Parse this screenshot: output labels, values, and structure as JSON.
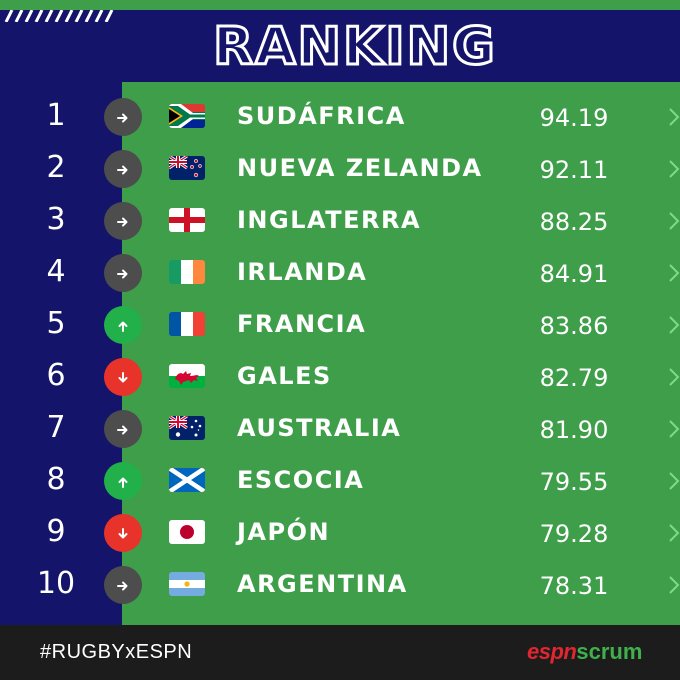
{
  "title": "RANKING",
  "rows": [
    {
      "rank": "1",
      "team": "SUDÁFRICA",
      "points": "94.19",
      "trend": "same",
      "trend_icon": "arrow-right-icon",
      "flag": "flag-south-africa-icon"
    },
    {
      "rank": "2",
      "team": "NUEVA ZELANDA",
      "points": "92.11",
      "trend": "same",
      "trend_icon": "arrow-right-icon",
      "flag": "flag-new-zealand-icon"
    },
    {
      "rank": "3",
      "team": "INGLATERRA",
      "points": "88.25",
      "trend": "same",
      "trend_icon": "arrow-right-icon",
      "flag": "flag-england-icon"
    },
    {
      "rank": "4",
      "team": "IRLANDA",
      "points": "84.91",
      "trend": "same",
      "trend_icon": "arrow-right-icon",
      "flag": "flag-ireland-icon"
    },
    {
      "rank": "5",
      "team": "FRANCIA",
      "points": "83.86",
      "trend": "up",
      "trend_icon": "arrow-up-icon",
      "flag": "flag-france-icon"
    },
    {
      "rank": "6",
      "team": "GALES",
      "points": "82.79",
      "trend": "down",
      "trend_icon": "arrow-down-icon",
      "flag": "flag-wales-icon"
    },
    {
      "rank": "7",
      "team": "AUSTRALIA",
      "points": "81.90",
      "trend": "same",
      "trend_icon": "arrow-right-icon",
      "flag": "flag-australia-icon"
    },
    {
      "rank": "8",
      "team": "ESCOCIA",
      "points": "79.55",
      "trend": "up",
      "trend_icon": "arrow-up-icon",
      "flag": "flag-scotland-icon"
    },
    {
      "rank": "9",
      "team": "JAPÓN",
      "points": "79.28",
      "trend": "down",
      "trend_icon": "arrow-down-icon",
      "flag": "flag-japan-icon"
    },
    {
      "rank": "10",
      "team": "ARGENTINA",
      "points": "78.31",
      "trend": "same",
      "trend_icon": "arrow-right-icon",
      "flag": "flag-argentina-icon"
    }
  ],
  "footer": {
    "hashtag": "#RUGBYxESPN",
    "brand_espn": "espn",
    "brand_scrum": "scrum"
  },
  "colors": {
    "navy": "#14146b",
    "green": "#3f9e4a",
    "trend_same": "#4d4d4d",
    "trend_up": "#21b04a",
    "trend_down": "#e8332a",
    "espn_red": "#e0262f"
  }
}
